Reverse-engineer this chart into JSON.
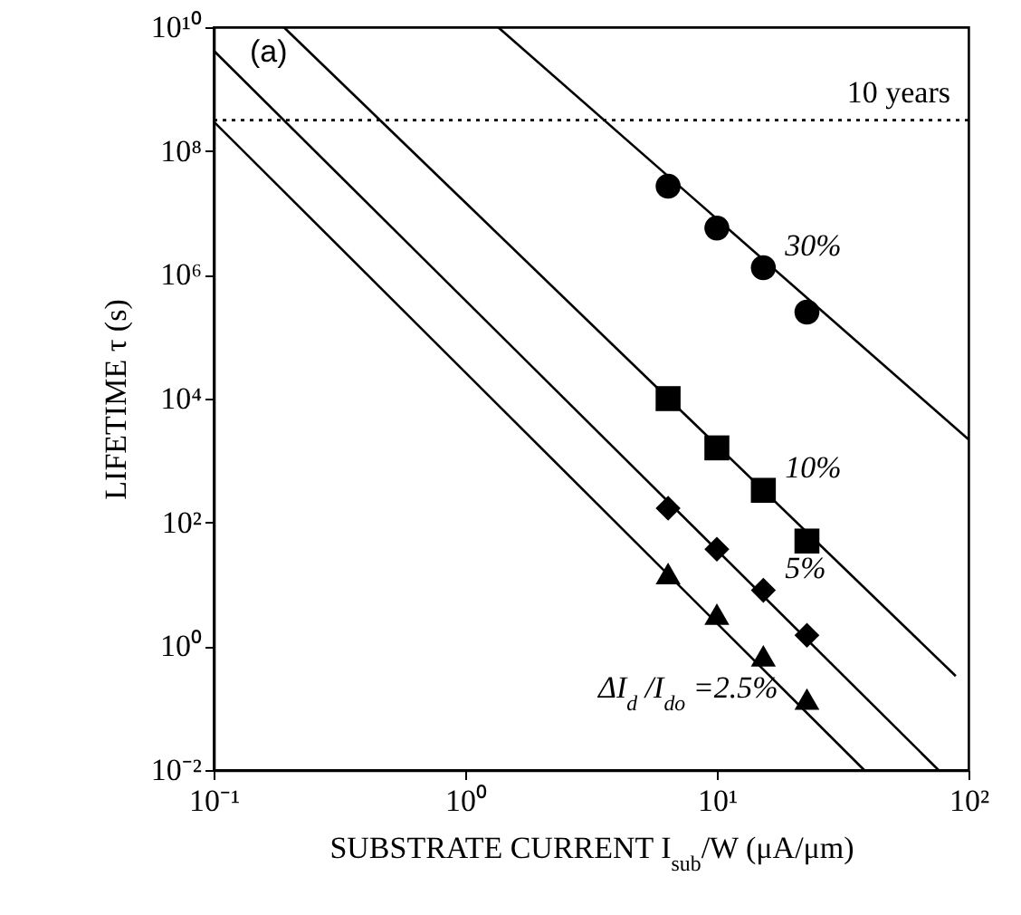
{
  "chart_data": {
    "type": "scatter",
    "xlabel": "SUBSTRATE CURRENT I$_{sub}$/W (μA/μm)",
    "ylabel": "LIFETIME τ (s)",
    "log": "xy",
    "xlim": [
      0.1,
      100
    ],
    "ylim": [
      0.01,
      10000000000
    ],
    "xticks": [
      {
        "value": 0.1,
        "label": "10⁻¹"
      },
      {
        "value": 1,
        "label": "10⁰"
      },
      {
        "value": 10,
        "label": "10¹"
      },
      {
        "value": 100,
        "label": "10²"
      }
    ],
    "yticks": [
      {
        "value": 0.01,
        "label": "10⁻²"
      },
      {
        "value": 1,
        "label": "10⁰"
      },
      {
        "value": 100,
        "label": "10²"
      },
      {
        "value": 10000,
        "label": "10⁴"
      },
      {
        "value": 1000000,
        "label": "10⁶"
      },
      {
        "value": 100000000,
        "label": "10⁸"
      },
      {
        "value": 10000000000,
        "label": "10¹⁰"
      }
    ],
    "grid": false,
    "series": [
      {
        "type": "line",
        "color": "#000000",
        "x": [
          1.35,
          100
        ],
        "values": [
          10000000000,
          2200
        ]
      },
      {
        "type": "line",
        "color": "#000000",
        "x": [
          0.19,
          89
        ],
        "values": [
          10000000000,
          0.33
        ]
      },
      {
        "type": "line",
        "color": "#000000",
        "x": [
          0.1,
          76
        ],
        "values": [
          4200000000,
          0.01
        ]
      },
      {
        "type": "line",
        "color": "#000000",
        "x": [
          0.1,
          38.5
        ],
        "values": [
          300000000,
          0.01
        ]
      },
      {
        "name": "30%",
        "marker": "circle",
        "color": "#000000",
        "x": [
          6.4,
          10,
          15.3,
          22.8
        ],
        "values": [
          27000000,
          5700000,
          1300000,
          250000
        ]
      },
      {
        "name": "10%",
        "marker": "square",
        "color": "#000000",
        "x": [
          6.4,
          10,
          15.3,
          22.8
        ],
        "values": [
          10000,
          1600,
          330,
          50
        ]
      },
      {
        "name": "5%",
        "marker": "diamond",
        "color": "#000000",
        "x": [
          6.4,
          10,
          15.3,
          22.8
        ],
        "values": [
          170,
          37,
          8,
          1.5
        ]
      },
      {
        "name": "ΔI$_{d}$ /I$_{do}$ =2.5%",
        "marker": "triangle",
        "color": "#000000",
        "x": [
          6.4,
          10,
          15.3,
          22.8
        ],
        "values": [
          15,
          3.3,
          0.7,
          0.14
        ]
      }
    ],
    "ref_lines": [
      {
        "axis": "y",
        "value": 315000000,
        "label": "10 years",
        "line_style": "dotted",
        "color": "#000000"
      }
    ],
    "annotations": [
      "(a)"
    ]
  }
}
